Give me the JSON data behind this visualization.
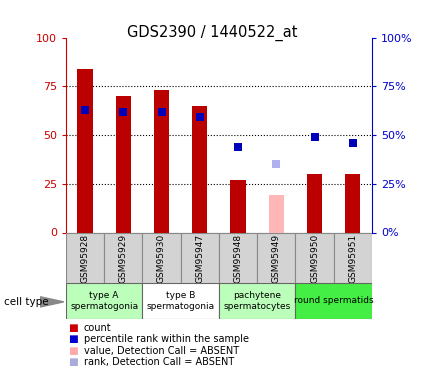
{
  "title": "GDS2390 / 1440522_at",
  "samples": [
    "GSM95928",
    "GSM95929",
    "GSM95930",
    "GSM95947",
    "GSM95948",
    "GSM95949",
    "GSM95950",
    "GSM95951"
  ],
  "bar_values": [
    84,
    70,
    73,
    65,
    27,
    null,
    30,
    30
  ],
  "absent_bar_values": [
    null,
    null,
    null,
    null,
    null,
    19,
    null,
    null
  ],
  "absent_bar_color": "#ffb6b6",
  "percentile_values": [
    63,
    62,
    62,
    59,
    44,
    null,
    49,
    46
  ],
  "absent_rank_values": [
    null,
    null,
    null,
    null,
    null,
    35,
    null,
    null
  ],
  "absent_rank_color": "#b0b0ee",
  "bar_color": "#bb0000",
  "percentile_color": "#0000bb",
  "cell_groups": [
    {
      "label": "type A\nspermatogonia",
      "start": 0,
      "end": 1,
      "color": "#bbffbb"
    },
    {
      "label": "type B\nspermatogonia",
      "start": 2,
      "end": 3,
      "color": "#ffffff"
    },
    {
      "label": "pachytene\nspermatocytes",
      "start": 4,
      "end": 5,
      "color": "#bbffbb"
    },
    {
      "label": "round spermatids",
      "start": 6,
      "end": 7,
      "color": "#44ee44"
    }
  ],
  "ylim": [
    0,
    100
  ],
  "yticks": [
    0,
    25,
    50,
    75,
    100
  ],
  "ytick_labels_left": [
    "0",
    "25",
    "50",
    "75",
    "100"
  ],
  "ytick_labels_right": [
    "0%",
    "25%",
    "50%",
    "75%",
    "100%"
  ],
  "left_axis_color": "#cc0000",
  "right_axis_color": "#0000cc",
  "bar_width": 0.4,
  "marker_size": 6,
  "legend_items": [
    {
      "color": "#cc0000",
      "label": "count"
    },
    {
      "color": "#0000cc",
      "label": "percentile rank within the sample"
    },
    {
      "color": "#ffaaaa",
      "label": "value, Detection Call = ABSENT"
    },
    {
      "color": "#aaaadd",
      "label": "rank, Detection Call = ABSENT"
    }
  ]
}
